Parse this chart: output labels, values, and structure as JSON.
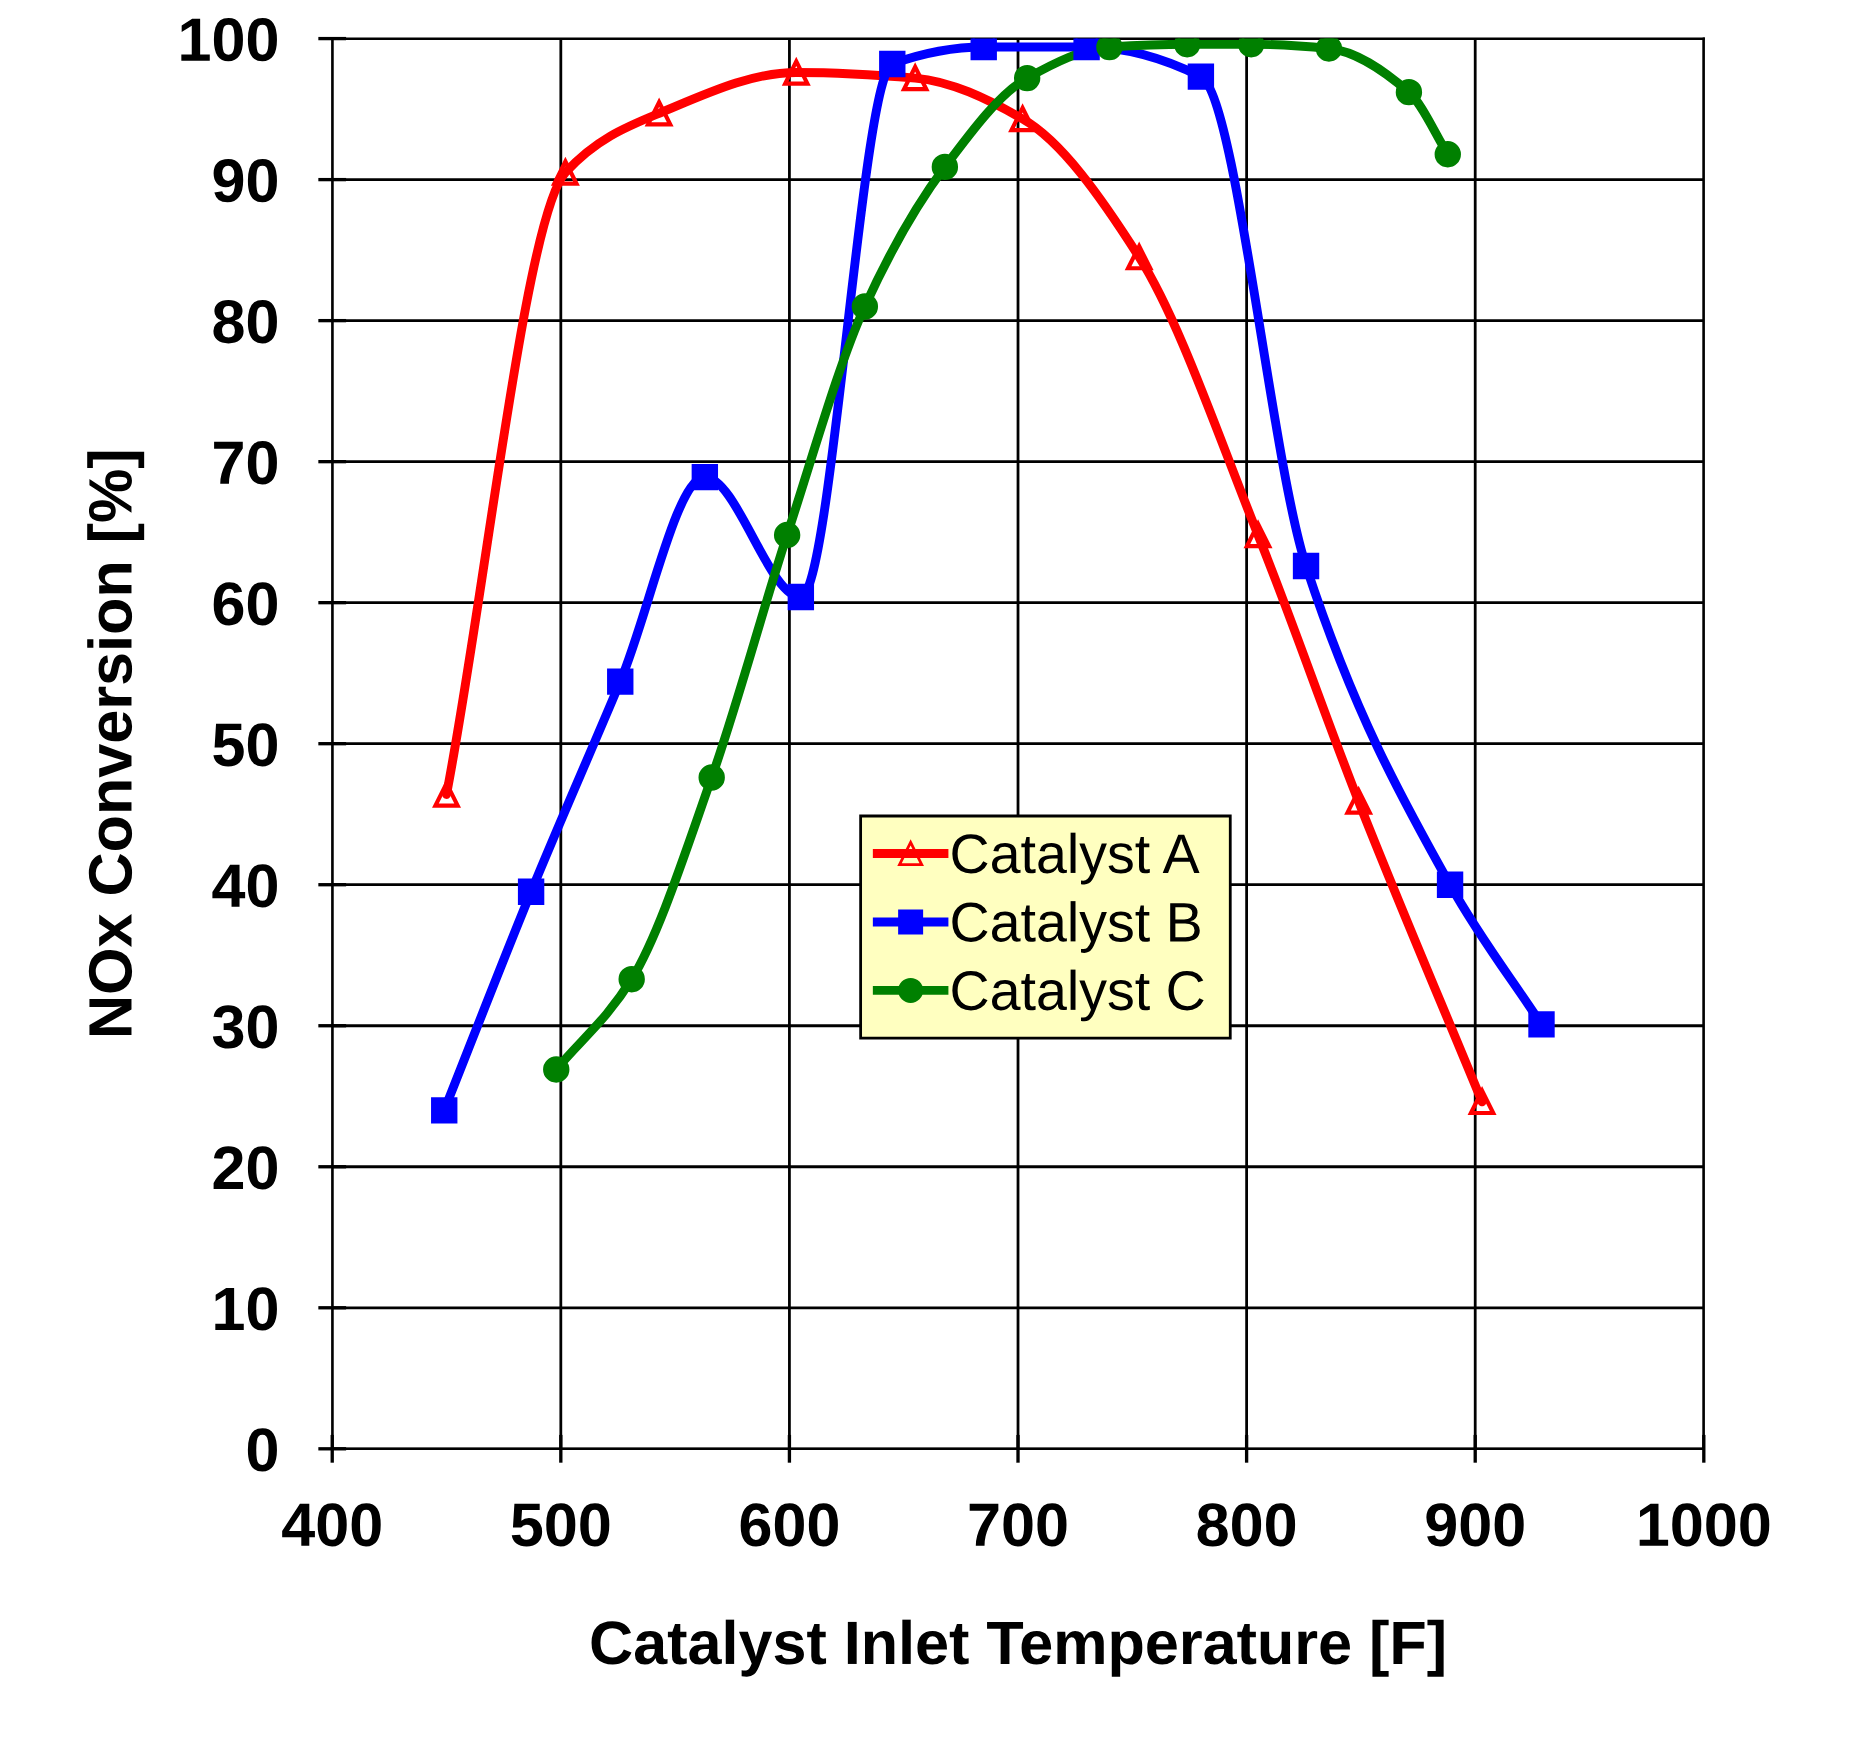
{
  "chart_data": {
    "type": "line",
    "xlabel": "Catalyst Inlet Temperature [F]",
    "ylabel": "NOx Conversion [%]",
    "xlim": [
      400,
      1000
    ],
    "xticks": [
      400,
      500,
      600,
      700,
      800,
      900,
      1000
    ],
    "ylim": [
      0,
      100
    ],
    "yticks": [
      0,
      10,
      20,
      30,
      40,
      50,
      60,
      70,
      80,
      90,
      100
    ],
    "grid": true,
    "legend": "center",
    "series": [
      {
        "name": "Catalyst A",
        "color": "#ff0000",
        "marker": "triangle",
        "x": [
          450,
          502,
          543,
          603,
          655,
          702,
          753,
          805,
          849,
          903
        ],
        "values": [
          46.4,
          90.5,
          94.7,
          97.6,
          97.2,
          94.3,
          84.5,
          64.8,
          45.9,
          24.6
        ]
      },
      {
        "name": "Catalyst B",
        "color": "#0000ff",
        "marker": "square",
        "x": [
          449,
          487,
          526,
          563,
          605,
          645,
          685,
          730,
          780,
          826,
          889,
          929
        ],
        "values": [
          24.0,
          39.5,
          54.4,
          68.9,
          60.4,
          98.2,
          99.4,
          99.4,
          97.3,
          62.6,
          40.0,
          30.1
        ]
      },
      {
        "name": "Catalyst C",
        "color": "#008000",
        "marker": "circle",
        "x": [
          498,
          531,
          566,
          599,
          633,
          668,
          704,
          740,
          774,
          802,
          836,
          871,
          888
        ],
        "values": [
          26.9,
          33.3,
          47.6,
          64.8,
          81.0,
          90.9,
          97.2,
          99.4,
          99.6,
          99.6,
          99.3,
          96.2,
          91.8
        ]
      }
    ]
  }
}
